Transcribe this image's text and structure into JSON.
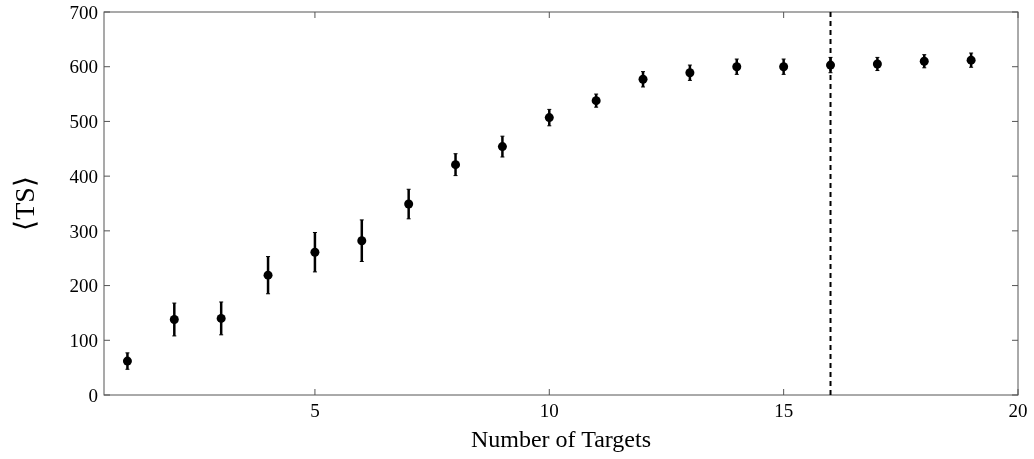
{
  "chart_data": {
    "type": "scatter",
    "xlabel": "Number of Targets",
    "ylabel": "⟨TS⟩",
    "x": [
      1,
      2,
      3,
      4,
      5,
      6,
      7,
      8,
      9,
      10,
      11,
      12,
      13,
      14,
      15,
      16,
      17,
      18,
      19
    ],
    "values": [
      62,
      138,
      140,
      219,
      261,
      282,
      349,
      421,
      454,
      507,
      538,
      577,
      589,
      600,
      600,
      603,
      605,
      610,
      612
    ],
    "errors": [
      15,
      30,
      30,
      34,
      36,
      38,
      27,
      20,
      19,
      15,
      12,
      14,
      14,
      14,
      14,
      14,
      12,
      12,
      13
    ],
    "color": "#000000",
    "marker": "circle",
    "xlim": [
      0.5,
      20
    ],
    "xticks": [
      5,
      10,
      15,
      20
    ],
    "ylim": [
      0,
      700
    ],
    "yticks": [
      0,
      100,
      200,
      300,
      400,
      500,
      600,
      700
    ],
    "ref_lines": [
      {
        "axis": "x",
        "value": 16,
        "line_style": "dashed",
        "color": "#000000"
      }
    ]
  }
}
